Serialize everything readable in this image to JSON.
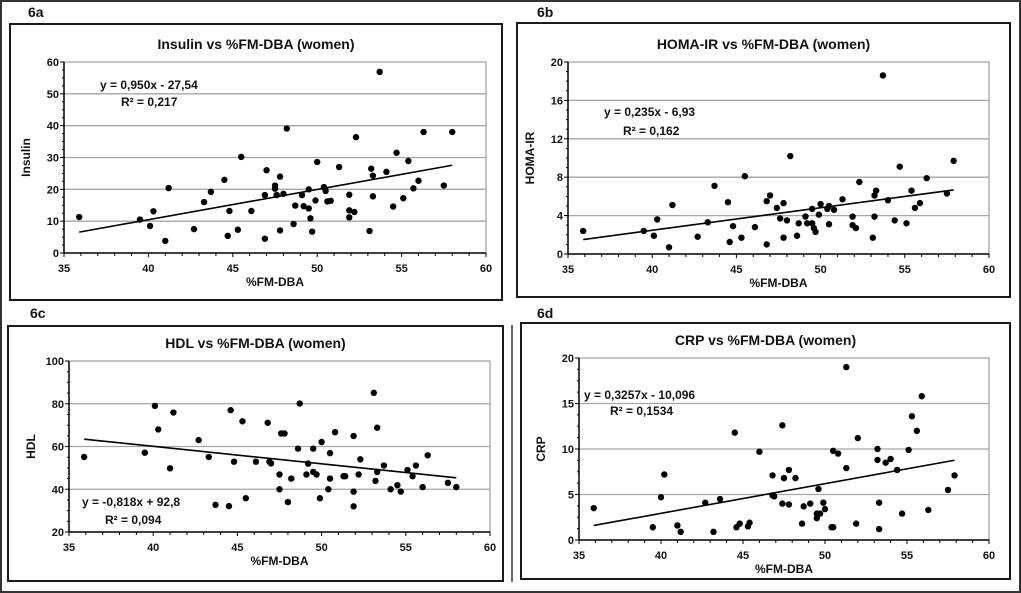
{
  "colors": {
    "marker": "#000000",
    "grid": "#a6a6a6",
    "frame": "#1a1a1a",
    "background": "#ffffff"
  },
  "chart_data": [
    {
      "panel": "6a",
      "type": "scatter",
      "title": "Insulin vs %FM-DBA (women)",
      "xlabel": "%FM-DBA",
      "ylabel": "Insulin",
      "xlim": [
        35,
        60
      ],
      "ylim": [
        0,
        60
      ],
      "xticks": [
        35,
        40,
        45,
        50,
        55,
        60
      ],
      "yticks": [
        0,
        10,
        20,
        30,
        40,
        50,
        60
      ],
      "grid": "horizontal",
      "trendline": {
        "slope": 0.95,
        "intercept": -27.54,
        "equation": "y = 0,950x - 27,54",
        "r2": "R² = 0,217"
      },
      "points": [
        [
          35.9,
          11.3
        ],
        [
          39.5,
          10.5
        ],
        [
          40.1,
          8.5
        ],
        [
          40.3,
          13.1
        ],
        [
          41.0,
          3.8
        ],
        [
          41.2,
          20.4
        ],
        [
          42.7,
          7.5
        ],
        [
          43.3,
          16.0
        ],
        [
          43.7,
          19.2
        ],
        [
          44.5,
          23.0
        ],
        [
          44.7,
          5.4
        ],
        [
          44.8,
          13.2
        ],
        [
          45.3,
          7.3
        ],
        [
          45.5,
          30.2
        ],
        [
          46.1,
          13.2
        ],
        [
          46.9,
          4.5
        ],
        [
          46.9,
          18.2
        ],
        [
          47.0,
          26.0
        ],
        [
          47.5,
          20.2
        ],
        [
          47.5,
          21.2
        ],
        [
          47.6,
          18.2
        ],
        [
          47.8,
          24.0
        ],
        [
          47.8,
          7.1
        ],
        [
          48.0,
          18.6
        ],
        [
          48.2,
          39.1
        ],
        [
          48.6,
          9.1
        ],
        [
          48.7,
          14.9
        ],
        [
          49.1,
          18.2
        ],
        [
          49.2,
          14.7
        ],
        [
          49.5,
          14.0
        ],
        [
          49.5,
          20.0
        ],
        [
          49.6,
          10.9
        ],
        [
          49.7,
          6.7
        ],
        [
          49.9,
          16.5
        ],
        [
          50.0,
          28.6
        ],
        [
          50.4,
          20.7
        ],
        [
          50.5,
          19.5
        ],
        [
          50.6,
          16.2
        ],
        [
          50.8,
          16.4
        ],
        [
          51.3,
          27.0
        ],
        [
          51.9,
          18.3
        ],
        [
          51.9,
          13.4
        ],
        [
          51.9,
          11.2
        ],
        [
          52.2,
          12.9
        ],
        [
          52.3,
          36.4
        ],
        [
          53.1,
          6.9
        ],
        [
          53.2,
          26.5
        ],
        [
          53.3,
          17.8
        ],
        [
          53.3,
          24.3
        ],
        [
          53.7,
          56.9
        ],
        [
          54.1,
          25.5
        ],
        [
          54.5,
          14.6
        ],
        [
          54.7,
          31.5
        ],
        [
          55.1,
          17.2
        ],
        [
          55.4,
          28.9
        ],
        [
          55.7,
          20.3
        ],
        [
          56.0,
          22.7
        ],
        [
          56.3,
          38.0
        ],
        [
          57.5,
          21.2
        ],
        [
          58.0,
          38.0
        ]
      ]
    },
    {
      "panel": "6b",
      "type": "scatter",
      "title": "HOMA-IR vs %FM-DBA (women)",
      "xlabel": "%FM-DBA",
      "ylabel": "HOMA-IR",
      "xlim": [
        35,
        60
      ],
      "ylim": [
        0,
        20
      ],
      "xticks": [
        35,
        40,
        45,
        50,
        55,
        60
      ],
      "yticks": [
        0,
        4,
        8,
        12,
        16,
        20
      ],
      "grid": "horizontal",
      "trendline": {
        "slope": 0.235,
        "intercept": -6.93,
        "equation": "y = 0,235x - 6,93",
        "r2": "R² = 0,162"
      },
      "points": [
        [
          35.9,
          2.4
        ],
        [
          39.5,
          2.4
        ],
        [
          40.1,
          1.9
        ],
        [
          40.3,
          3.6
        ],
        [
          41.0,
          0.7
        ],
        [
          41.2,
          5.1
        ],
        [
          42.7,
          1.8
        ],
        [
          43.3,
          3.3
        ],
        [
          43.7,
          7.1
        ],
        [
          44.5,
          5.4
        ],
        [
          44.6,
          1.25
        ],
        [
          44.8,
          2.9
        ],
        [
          45.3,
          1.7
        ],
        [
          45.5,
          8.1
        ],
        [
          46.1,
          2.8
        ],
        [
          46.8,
          1.0
        ],
        [
          46.8,
          5.5
        ],
        [
          47.0,
          6.1
        ],
        [
          47.4,
          4.8
        ],
        [
          47.6,
          3.7
        ],
        [
          47.8,
          5.3
        ],
        [
          47.8,
          1.7
        ],
        [
          48.0,
          3.5
        ],
        [
          48.2,
          10.2
        ],
        [
          48.6,
          1.9
        ],
        [
          48.7,
          3.2
        ],
        [
          49.1,
          3.9
        ],
        [
          49.2,
          3.2
        ],
        [
          49.5,
          3.2
        ],
        [
          49.5,
          4.7
        ],
        [
          49.6,
          2.7
        ],
        [
          49.7,
          2.3
        ],
        [
          49.9,
          4.1
        ],
        [
          50.0,
          5.2
        ],
        [
          50.4,
          4.7
        ],
        [
          50.5,
          3.1
        ],
        [
          50.5,
          5.0
        ],
        [
          50.8,
          4.6
        ],
        [
          51.3,
          5.7
        ],
        [
          51.9,
          3.9
        ],
        [
          51.9,
          3.0
        ],
        [
          52.1,
          2.7
        ],
        [
          52.3,
          7.5
        ],
        [
          53.1,
          1.7
        ],
        [
          53.2,
          6.1
        ],
        [
          53.2,
          3.9
        ],
        [
          53.3,
          6.6
        ],
        [
          53.7,
          18.6
        ],
        [
          54.0,
          5.6
        ],
        [
          54.4,
          3.5
        ],
        [
          54.7,
          9.1
        ],
        [
          55.1,
          3.2
        ],
        [
          55.4,
          6.6
        ],
        [
          55.6,
          4.8
        ],
        [
          55.9,
          5.3
        ],
        [
          56.3,
          7.9
        ],
        [
          57.5,
          6.3
        ],
        [
          57.9,
          9.7
        ]
      ]
    },
    {
      "panel": "6c",
      "type": "scatter",
      "title": "HDL vs %FM-DBA (women)",
      "xlabel": "%FM-DBA",
      "ylabel": "HDL",
      "xlim": [
        35,
        60
      ],
      "ylim": [
        20,
        100
      ],
      "xticks": [
        35,
        40,
        45,
        50,
        55,
        60
      ],
      "yticks": [
        20,
        40,
        60,
        80,
        100
      ],
      "grid": "horizontal",
      "trendline": {
        "slope": -0.818,
        "intercept": 92.8,
        "equation": "y = -0,818x + 92,8",
        "r2": "R² = 0,094"
      },
      "points": [
        [
          35.9,
          55.1
        ],
        [
          39.5,
          57.1
        ],
        [
          40.1,
          79.0
        ],
        [
          40.3,
          68.0
        ],
        [
          41.0,
          49.8
        ],
        [
          41.2,
          75.9
        ],
        [
          42.7,
          63.0
        ],
        [
          43.3,
          55.1
        ],
        [
          43.7,
          32.7
        ],
        [
          44.5,
          32.1
        ],
        [
          44.6,
          77.0
        ],
        [
          44.8,
          52.9
        ],
        [
          45.3,
          71.8
        ],
        [
          45.5,
          35.8
        ],
        [
          46.1,
          52.9
        ],
        [
          46.8,
          71.1
        ],
        [
          46.9,
          52.9
        ],
        [
          47.0,
          52.1
        ],
        [
          47.5,
          46.9
        ],
        [
          47.5,
          40.0
        ],
        [
          47.6,
          66.1
        ],
        [
          47.8,
          66.1
        ],
        [
          48.0,
          34.0
        ],
        [
          48.2,
          45.0
        ],
        [
          48.6,
          59.0
        ],
        [
          48.7,
          80.1
        ],
        [
          49.1,
          46.9
        ],
        [
          49.2,
          52.0
        ],
        [
          49.5,
          59.0
        ],
        [
          49.5,
          48.1
        ],
        [
          49.7,
          46.9
        ],
        [
          49.9,
          35.8
        ],
        [
          50.0,
          62.1
        ],
        [
          50.4,
          40.0
        ],
        [
          50.5,
          56.9
        ],
        [
          50.5,
          45.0
        ],
        [
          50.8,
          66.7
        ],
        [
          51.3,
          46.1
        ],
        [
          51.4,
          46.1
        ],
        [
          51.9,
          64.9
        ],
        [
          51.9,
          38.9
        ],
        [
          51.9,
          32.0
        ],
        [
          52.2,
          46.9
        ],
        [
          52.3,
          54.0
        ],
        [
          53.1,
          85.1
        ],
        [
          53.2,
          43.9
        ],
        [
          53.3,
          68.8
        ],
        [
          53.3,
          48.1
        ],
        [
          53.7,
          51.1
        ],
        [
          54.1,
          40.0
        ],
        [
          54.5,
          41.9
        ],
        [
          54.7,
          38.9
        ],
        [
          55.1,
          49.0
        ],
        [
          55.4,
          46.1
        ],
        [
          55.6,
          51.1
        ],
        [
          56.0,
          41.0
        ],
        [
          56.3,
          55.9
        ],
        [
          57.5,
          43.0
        ],
        [
          58.0,
          41.0
        ]
      ]
    },
    {
      "panel": "6d",
      "type": "scatter",
      "title": "CRP vs %FM-DBA (women)",
      "xlabel": "%FM-DBA",
      "ylabel": "CRP",
      "xlim": [
        35,
        60
      ],
      "ylim": [
        0,
        20
      ],
      "xticks": [
        35,
        40,
        45,
        50,
        55,
        60
      ],
      "yticks": [
        0,
        5,
        10,
        15,
        20
      ],
      "grid": "horizontal",
      "trendline": {
        "slope": 0.3257,
        "intercept": -10.096,
        "equation": "y = 0,3257x - 10,096",
        "r2": "R² = 0,1534"
      },
      "points": [
        [
          35.9,
          3.5
        ],
        [
          39.5,
          1.4
        ],
        [
          40.0,
          4.7
        ],
        [
          40.2,
          7.2
        ],
        [
          41.0,
          1.6
        ],
        [
          41.2,
          0.9
        ],
        [
          42.7,
          4.1
        ],
        [
          43.2,
          0.9
        ],
        [
          43.6,
          4.5
        ],
        [
          44.5,
          11.8
        ],
        [
          44.6,
          1.4
        ],
        [
          44.8,
          1.8
        ],
        [
          45.3,
          1.5
        ],
        [
          45.4,
          1.9
        ],
        [
          46.0,
          9.7
        ],
        [
          46.8,
          7.1
        ],
        [
          46.8,
          4.9
        ],
        [
          46.9,
          4.8
        ],
        [
          47.4,
          12.6
        ],
        [
          47.4,
          4.0
        ],
        [
          47.5,
          6.8
        ],
        [
          47.8,
          7.7
        ],
        [
          47.8,
          3.9
        ],
        [
          48.2,
          6.8
        ],
        [
          48.6,
          1.8
        ],
        [
          48.7,
          3.7
        ],
        [
          49.1,
          4.0
        ],
        [
          49.5,
          2.9
        ],
        [
          49.5,
          2.4
        ],
        [
          49.6,
          5.6
        ],
        [
          49.7,
          2.9
        ],
        [
          49.9,
          4.1
        ],
        [
          50.0,
          3.4
        ],
        [
          50.4,
          1.4
        ],
        [
          50.5,
          1.4
        ],
        [
          50.5,
          9.8
        ],
        [
          50.8,
          9.5
        ],
        [
          51.3,
          7.9
        ],
        [
          51.3,
          19.0
        ],
        [
          51.9,
          1.8
        ],
        [
          52.0,
          11.2
        ],
        [
          53.2,
          8.8
        ],
        [
          53.2,
          10.0
        ],
        [
          53.3,
          1.2
        ],
        [
          53.3,
          4.1
        ],
        [
          53.7,
          8.5
        ],
        [
          54.0,
          8.9
        ],
        [
          54.4,
          7.7
        ],
        [
          54.7,
          2.9
        ],
        [
          55.1,
          9.9
        ],
        [
          55.3,
          13.6
        ],
        [
          55.6,
          12.0
        ],
        [
          55.9,
          15.8
        ],
        [
          56.3,
          3.3
        ],
        [
          57.5,
          5.5
        ],
        [
          57.9,
          7.1
        ]
      ]
    }
  ]
}
